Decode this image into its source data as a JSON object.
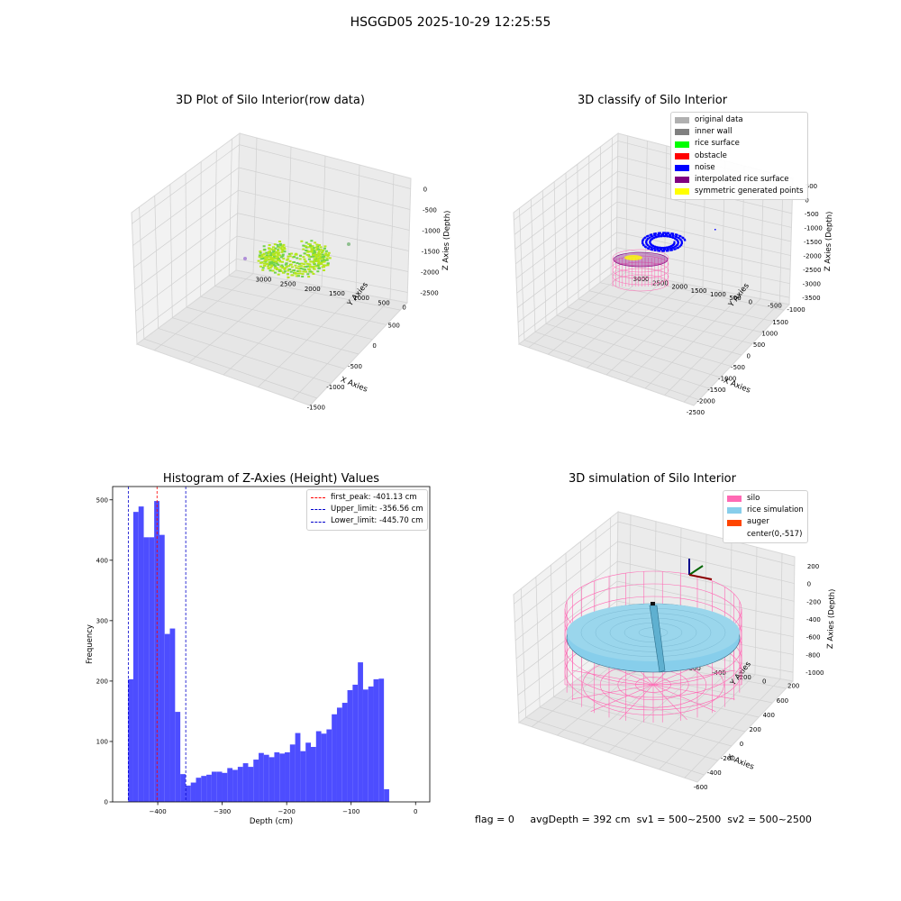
{
  "suptitle": "HSGGD05 2025-10-29 12:25:55",
  "footer": {
    "flag": "flag = 0",
    "avg_depth": "avgDepth = 392 cm",
    "sv1": "sv1 = 500~2500",
    "sv2": "sv2 = 500~2500"
  },
  "chart_data": [
    {
      "type": "scatter",
      "title": "3D Plot of Silo Interior(row data)",
      "xlabel": "X Axies",
      "ylabel": "Y Axies",
      "zlabel": "Z Axies (Depth)",
      "x_ticks": [
        "-1500",
        "-1000",
        "-500",
        "0",
        "500"
      ],
      "y_ticks": [
        "0",
        "500",
        "1000",
        "1500",
        "2000",
        "2500",
        "3000"
      ],
      "z_ticks": [
        "0",
        "-500",
        "-1000",
        "-1500",
        "-2000",
        "-2500"
      ],
      "colors": {
        "main": "#b5e61d",
        "dark": "#6fd24a",
        "outlier": "#8fbf8f"
      }
    },
    {
      "type": "scatter",
      "title": "3D classify of Silo Interior",
      "xlabel": "X Axies",
      "ylabel": "Y Axies",
      "zlabel": "Z Axies (Depth)",
      "x_ticks": [
        "-2500",
        "-2000",
        "-1500",
        "-1000",
        "-500",
        "0",
        "500",
        "1000",
        "1500"
      ],
      "y_ticks": [
        "-1000",
        "-500",
        "0",
        "500",
        "1000",
        "1500",
        "2000",
        "2500",
        "3000"
      ],
      "z_ticks": [
        "500",
        "0",
        "-500",
        "-1000",
        "-1500",
        "-2000",
        "-2500",
        "-3000",
        "-3500"
      ],
      "legend": [
        {
          "label": "original data",
          "color": "#b0b0b0"
        },
        {
          "label": "inner wall",
          "color": "#808080"
        },
        {
          "label": "rice surface",
          "color": "#00ff00"
        },
        {
          "label": "obstacle",
          "color": "#ff0000"
        },
        {
          "label": "noise",
          "color": "#0000ff"
        },
        {
          "label": "interpolated rice surface",
          "color": "#800080"
        },
        {
          "label": "symmetric generated points",
          "color": "#ffff00"
        }
      ]
    },
    {
      "type": "bar",
      "title": "Histogram of Z-Axies (Height) Values",
      "xlabel": "Depth (cm)",
      "ylabel": "Frequency",
      "xlim": [
        -470,
        22
      ],
      "ylim": [
        0,
        522
      ],
      "x_ticks": [
        -400,
        -300,
        -200,
        -100,
        0
      ],
      "y_ticks": [
        0,
        100,
        200,
        300,
        400,
        500
      ],
      "bar_color": "#4d4dff",
      "bin_start": -446,
      "bin_width": 8.1,
      "values": [
        203,
        480,
        489,
        438,
        438,
        498,
        442,
        278,
        287,
        149,
        46,
        27,
        32,
        40,
        43,
        45,
        50,
        50,
        48,
        56,
        53,
        58,
        64,
        58,
        70,
        81,
        78,
        74,
        82,
        80,
        82,
        95,
        114,
        84,
        98,
        91,
        117,
        113,
        120,
        145,
        156,
        164,
        185,
        194,
        231,
        186,
        191,
        203,
        204,
        21
      ],
      "lines": [
        {
          "label": "first_peak: -401.13 cm",
          "x": -401.13,
          "color": "#ff0000"
        },
        {
          "label": "Upper_limit: -356.56 cm",
          "x": -356.56,
          "color": "#0000cc"
        },
        {
          "label": "Lower_limit: -445.70 cm",
          "x": -445.7,
          "color": "#0000cc"
        }
      ]
    },
    {
      "type": "surface",
      "title": "3D simulation of Silo Interior",
      "xlabel": "X Axies",
      "ylabel": "Y Axies",
      "zlabel": "Z Axies (Depth)",
      "x_ticks": [
        "-600",
        "-400",
        "-200",
        "0",
        "200",
        "400",
        "600"
      ],
      "y_ticks": [
        "200",
        "0",
        "-200",
        "-400",
        "-600",
        "-800",
        "-1000"
      ],
      "z_ticks": [
        "200",
        "0",
        "-200",
        "-400",
        "-600",
        "-800",
        "-1000"
      ],
      "legend": [
        {
          "label": "silo",
          "color": "#ff69b4"
        },
        {
          "label": "rice simulation",
          "color": "#87ceeb"
        },
        {
          "label": "auger",
          "color": "#ff4500"
        },
        {
          "label": "center(0,-517)",
          "color": "#ffffff"
        }
      ]
    }
  ]
}
